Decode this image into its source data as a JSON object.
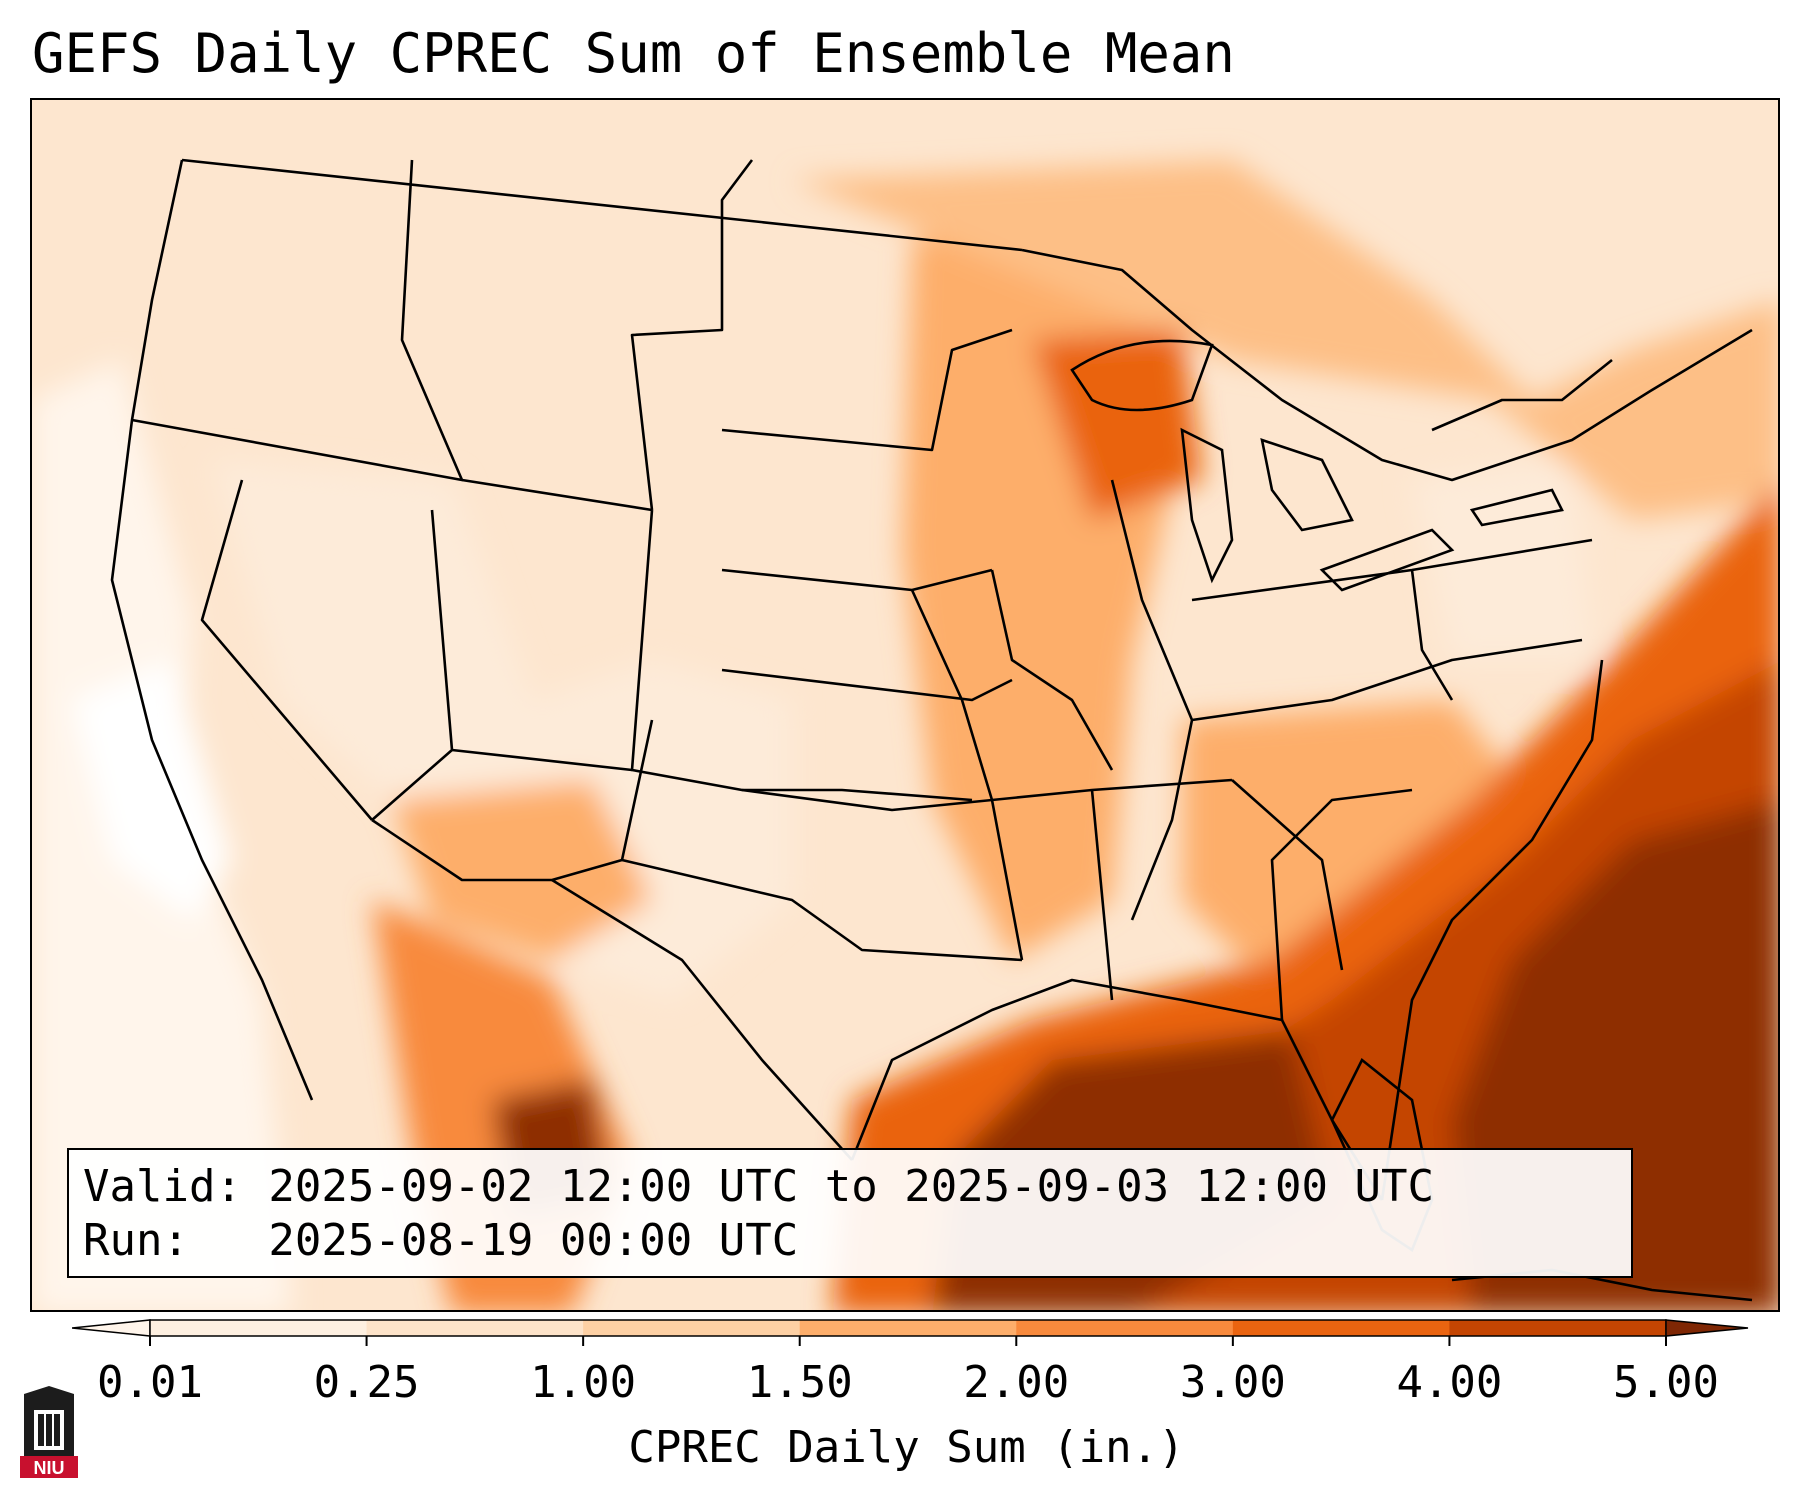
{
  "title": "GEFS Daily CPREC Sum of Ensemble Mean",
  "info": {
    "valid_line": "Valid: 2025-09-02 12:00 UTC to 2025-09-03 12:00 UTC",
    "run_line": "Run:   2025-08-19 00:00 UTC"
  },
  "colorbar": {
    "label": "CPREC Daily Sum (in.)",
    "ticks": [
      "0.01",
      "0.25",
      "1.00",
      "1.50",
      "2.00",
      "3.00",
      "4.00",
      "5.00"
    ],
    "colors": [
      "#fef0e1",
      "#fde3c9",
      "#fdd0a4",
      "#fdae6b",
      "#f88a3d",
      "#ea6410",
      "#c44502",
      "#8e2f04"
    ],
    "under_color": "#fff5eb",
    "over_color": "#7f2704"
  },
  "logo": {
    "text": "NIU",
    "colors": {
      "red": "#c8102e",
      "dark": "#1c1c1c"
    }
  },
  "map": {
    "region": "Contiguous United States, southern Canada, northern Mexico, Gulf of Mexico, western Atlantic",
    "field": "CPREC daily sum",
    "heaviest_areas": [
      "Gulf of Mexico",
      "Florida",
      "Southeast US coast / western Atlantic",
      "Upper Michigan / Lake Superior"
    ]
  }
}
